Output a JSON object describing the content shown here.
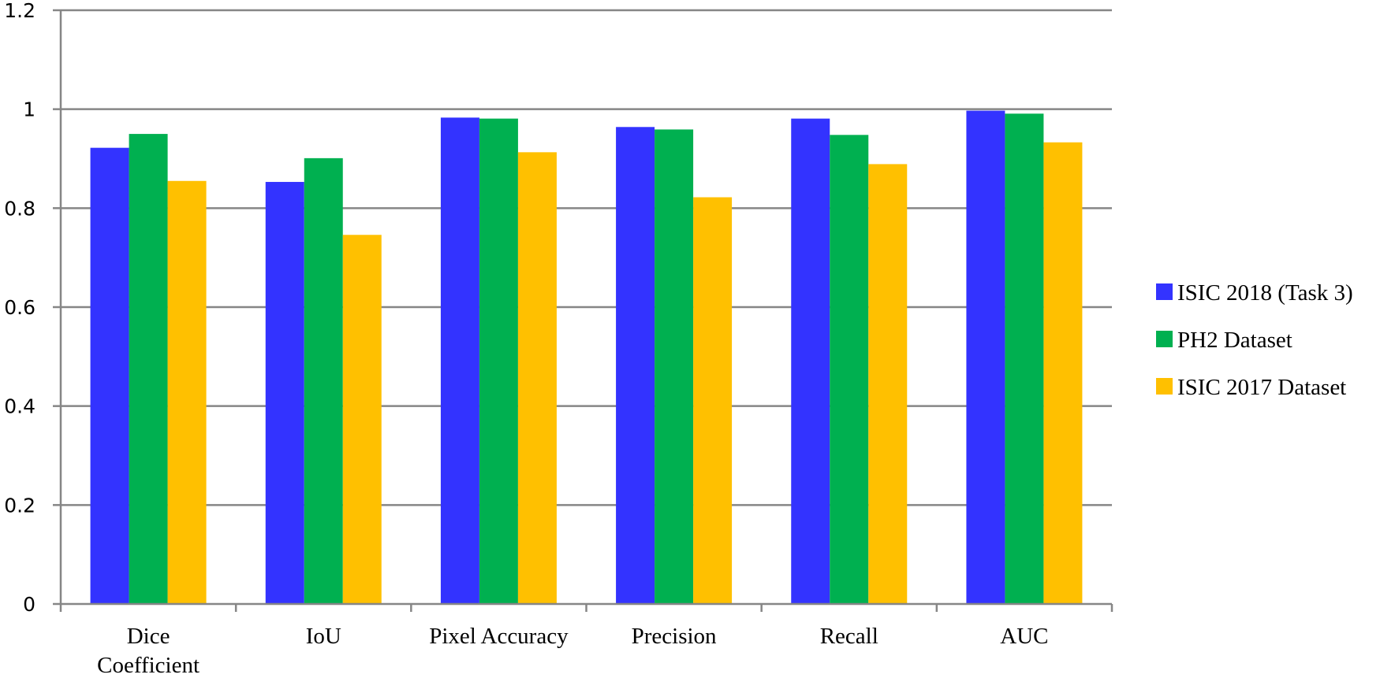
{
  "chart_data": {
    "type": "bar",
    "title": "",
    "xlabel": "",
    "ylabel": "",
    "ylim": [
      0,
      1.2
    ],
    "yticks": [
      {
        "value": 0,
        "label": "0"
      },
      {
        "value": 0.2,
        "label": "0.2"
      },
      {
        "value": 0.4,
        "label": "0.4"
      },
      {
        "value": 0.6,
        "label": "0.6"
      },
      {
        "value": 0.8,
        "label": "0.8"
      },
      {
        "value": 1,
        "label": "1"
      },
      {
        "value": 1.2,
        "label": "1.2"
      }
    ],
    "grid": true,
    "legend_position": "right",
    "categories": [
      [
        "Dice",
        "Coefficient"
      ],
      [
        "IoU"
      ],
      [
        "Pixel Accuracy"
      ],
      [
        "Precision"
      ],
      [
        "Recall"
      ],
      [
        "AUC"
      ]
    ],
    "series": [
      {
        "name": "ISIC 2018 (Task 3)",
        "color": "#3333ff",
        "values": [
          0.922,
          0.853,
          0.983,
          0.964,
          0.981,
          0.997
        ]
      },
      {
        "name": "PH2 Dataset",
        "color": "#00b050",
        "values": [
          0.95,
          0.901,
          0.981,
          0.959,
          0.948,
          0.991
        ]
      },
      {
        "name": "ISIC 2017 Dataset",
        "color": "#ffc000",
        "values": [
          0.855,
          0.746,
          0.913,
          0.822,
          0.889,
          0.933
        ]
      }
    ],
    "colors": {
      "grid": "#868686",
      "axis": "#868686"
    }
  }
}
